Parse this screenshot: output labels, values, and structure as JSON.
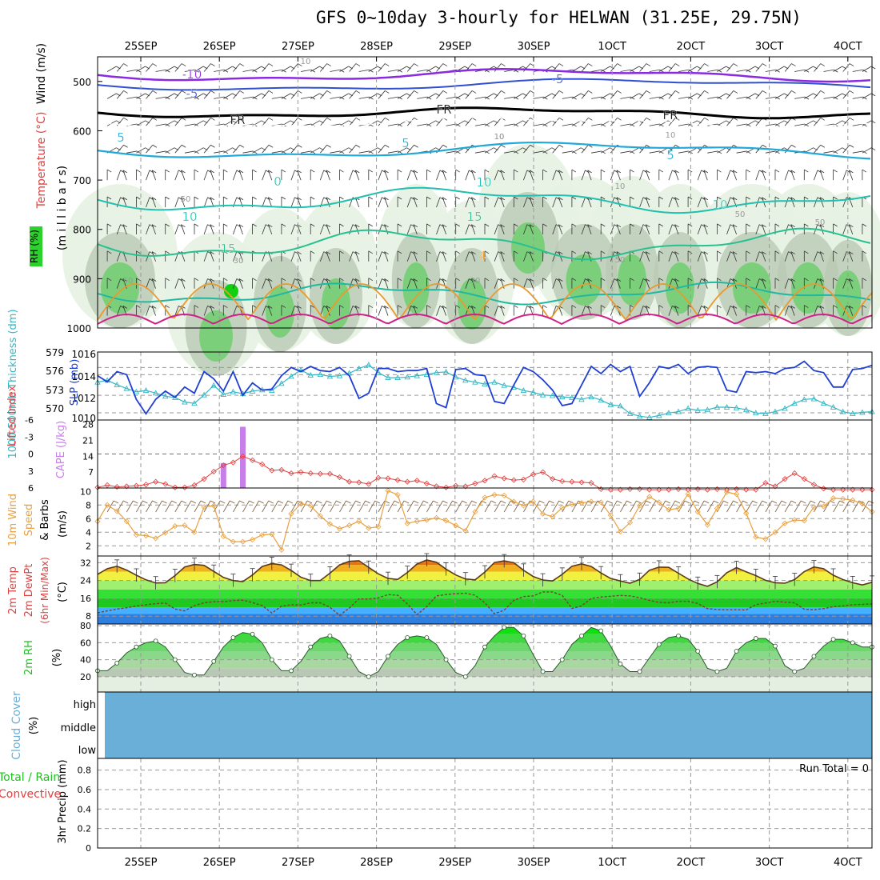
{
  "title": "GFS 0~10day 3-hourly for HELWAN (31.25E, 29.75N)",
  "chart_data": [
    {
      "type": "cross-section",
      "panel": "upper-air",
      "x_dates": [
        "25SEP",
        "26SEP",
        "27SEP",
        "28SEP",
        "29SEP",
        "30SEP",
        "1OCT",
        "2OCT",
        "3OCT",
        "4OCT"
      ],
      "ylabel_parts": {
        "wind": "Wind (m/s)",
        "temp": "Temperature (°C)",
        "pressure": "(m i l l i b a r s)",
        "rh": "RH (%)"
      },
      "y_ticks": [
        500,
        600,
        700,
        800,
        900,
        1000
      ],
      "ylim": [
        450,
        1000
      ],
      "contour_labels": [
        "-10",
        "-5",
        "FR",
        "FR",
        "FR",
        "-5",
        "5",
        "5",
        "5",
        "0",
        "10",
        "10",
        "10",
        "15",
        "15",
        "4"
      ],
      "rh_labels": [
        "30",
        "50",
        "50",
        "10",
        "10",
        "10",
        "30",
        "50",
        "50",
        "10",
        "50",
        "10"
      ]
    },
    {
      "type": "line",
      "panel": "thickness-slp",
      "ylabel_left": "1000-500mb Thickness (dm)",
      "ylabel_right": "SLP (mb)",
      "thickness_ticks": [
        "579",
        "576",
        "573",
        "570"
      ],
      "slp_ticks": [
        "1016",
        "1014",
        "1012",
        "1010"
      ],
      "series": [
        {
          "name": "SLP (mb)",
          "color": "#1f3fd2",
          "values": [
            1013.9,
            1013.3,
            1014.3,
            1014.0,
            1011.6,
            1010.2,
            1011.6,
            1012.4,
            1011.8,
            1012.8,
            1012.2,
            1014.3,
            1013.6,
            1012.4,
            1014.3,
            1012.0,
            1013.2,
            1012.5,
            1012.6,
            1013.9,
            1014.7,
            1014.3,
            1014.8,
            1014.4,
            1014.3,
            1014.7,
            1013.9,
            1011.7,
            1012.2,
            1014.6,
            1014.6,
            1014.3,
            1014.4,
            1014.4,
            1014.6,
            1011.2,
            1010.8,
            1014.5,
            1014.6,
            1014.0,
            1013.9,
            1011.4,
            1011.2,
            1013.0,
            1014.7,
            1014.3,
            1013.5,
            1012.5,
            1011.0,
            1011.2,
            1013.0,
            1014.8,
            1014.1,
            1015.0,
            1014.3,
            1014.8,
            1011.9,
            1013.2,
            1014.8,
            1014.6,
            1015.0,
            1014.1,
            1014.7,
            1014.8,
            1014.7,
            1012.5,
            1012.3,
            1014.3,
            1014.2,
            1014.3,
            1014.1,
            1014.6,
            1014.7,
            1015.3,
            1014.4,
            1014.2,
            1012.8,
            1012.8,
            1014.5,
            1014.6,
            1014.9
          ]
        },
        {
          "name": "1000-500mb Thickness (dm)",
          "color": "#35b6c4",
          "values": [
            574.5,
            574.8,
            574.1,
            573.5,
            573.0,
            573.2,
            572.8,
            572.3,
            572.1,
            571.4,
            571.2,
            572.5,
            574.0,
            572.6,
            573.0,
            572.7,
            573.1,
            573.3,
            573.2,
            574.3,
            575.4,
            576.4,
            575.6,
            575.7,
            575.4,
            575.5,
            575.9,
            576.6,
            577.2,
            576.0,
            575.2,
            575.2,
            575.3,
            575.5,
            575.7,
            576.0,
            576.1,
            575.3,
            574.8,
            574.5,
            574.2,
            574.5,
            574.0,
            573.7,
            573.2,
            572.9,
            572.5,
            572.4,
            572.2,
            572.1,
            571.8,
            572.2,
            571.7,
            571.0,
            570.8,
            569.6,
            569.2,
            569.0,
            569.3,
            569.7,
            569.9,
            570.4,
            570.1,
            570.2,
            570.6,
            570.6,
            570.5,
            570.2,
            569.7,
            569.6,
            569.9,
            570.4,
            571.2,
            571.8,
            571.9,
            571.2,
            570.6,
            569.9,
            569.6,
            569.8,
            569.9
          ]
        }
      ]
    },
    {
      "type": "bar+line",
      "panel": "li-cape",
      "ylabel_left": "Lifted Index",
      "ylabel_right": "CAPE (J/kg)",
      "li_ticks": [
        "-6",
        "-3",
        "0",
        "3",
        "6"
      ],
      "cape_ticks": [
        "28",
        "21",
        "14",
        "7"
      ],
      "li_values": [
        5.9,
        5.5,
        5.8,
        5.7,
        5.6,
        5.4,
        4.9,
        5.3,
        5.9,
        5.9,
        5.5,
        4.4,
        3.1,
        2.0,
        1.5,
        0.4,
        1.1,
        1.8,
        2.9,
        2.8,
        3.4,
        3.2,
        3.4,
        3.5,
        3.5,
        4.1,
        4.9,
        5.0,
        5.3,
        4.2,
        4.3,
        4.6,
        4.9,
        4.7,
        5.2,
        5.7,
        5.9,
        5.6,
        5.7,
        5.2,
        4.7,
        3.9,
        4.3,
        4.6,
        4.5,
        3.6,
        3.2,
        4.4,
        4.8,
        4.9,
        5.0,
        5.1,
        6.2,
        6.3,
        6.3,
        6.2,
        6.2,
        6.3,
        6.3,
        6.3,
        6.2,
        6.3,
        6.2,
        6.3,
        6.2,
        6.3,
        6.2,
        6.3,
        6.3,
        5.1,
        5.7,
        4.4,
        3.4,
        4.4,
        5.4,
        6.1,
        6.3,
        6.3,
        6.3,
        6.3,
        6.3
      ],
      "cape_bars": [
        {
          "index": 13,
          "value": 11
        },
        {
          "index": 15,
          "value": 27
        }
      ]
    },
    {
      "type": "line",
      "panel": "wind10m",
      "ylabel": "10m Wind Speed & Barbs (m/s)",
      "y_ticks": [
        "10",
        "8",
        "6",
        "4",
        "2"
      ],
      "values": [
        5.6,
        8.0,
        7.1,
        5.6,
        3.6,
        3.5,
        3.1,
        3.9,
        4.9,
        5.0,
        4.0,
        7.7,
        7.9,
        3.4,
        2.6,
        2.6,
        2.9,
        3.6,
        3.7,
        1.4,
        6.7,
        8.2,
        7.9,
        6.4,
        5.2,
        4.5,
        5.0,
        5.6,
        4.6,
        4.8,
        10.1,
        9.5,
        5.3,
        5.6,
        5.8,
        6.1,
        5.7,
        5.0,
        4.2,
        7.0,
        9.1,
        9.5,
        9.4,
        8.5,
        7.9,
        8.5,
        6.7,
        6.3,
        7.6,
        8.1,
        8.3,
        8.5,
        8.4,
        6.5,
        4.1,
        5.4,
        7.9,
        9.2,
        8.4,
        7.3,
        7.5,
        9.6,
        7.0,
        5.1,
        7.5,
        9.9,
        9.6,
        6.8,
        3.3,
        3.0,
        4.0,
        5.3,
        5.8,
        5.7,
        7.7,
        7.8,
        9.0,
        8.9,
        8.7,
        8.2,
        7.0
      ]
    },
    {
      "type": "area",
      "panel": "temp-dewpt",
      "ylabel": "2m Temp 2m DewPt (6hr Min/Max) (°C)",
      "y_ticks": [
        "32",
        "24",
        "16",
        "8"
      ],
      "temp_values": [
        26.8,
        29.3,
        30.4,
        28.7,
        26.4,
        24.3,
        22.9,
        23.0,
        26.2,
        30.1,
        31.2,
        30.8,
        28.1,
        25.4,
        24.0,
        23.5,
        26.5,
        30.3,
        31.6,
        31.0,
        28.5,
        25.5,
        24.0,
        24.0,
        27.3,
        31.0,
        32.6,
        32.9,
        29.9,
        27.0,
        24.9,
        24.5,
        27.6,
        31.4,
        33.2,
        32.2,
        29.1,
        26.5,
        24.7,
        24.3,
        27.8,
        32.1,
        32.8,
        32.0,
        28.6,
        25.8,
        24.2,
        23.8,
        26.8,
        30.4,
        31.5,
        30.3,
        27.4,
        24.9,
        23.8,
        22.8,
        24.5,
        28.6,
        30.0,
        29.9,
        27.3,
        24.7,
        22.7,
        21.4,
        23.4,
        27.5,
        29.8,
        27.9,
        26.2,
        24.1,
        23.0,
        22.8,
        24.4,
        28.0,
        30.1,
        29.3,
        26.4,
        24.4,
        23.0,
        22.0,
        23.2
      ],
      "dewpt_values": [
        9.5,
        10.4,
        11.2,
        11.8,
        12.6,
        13.1,
        13.6,
        13.9,
        11.2,
        10.4,
        12.7,
        14.0,
        14.5,
        14.5,
        15.0,
        15.2,
        14.1,
        12.8,
        9.4,
        12.5,
        13.1,
        13.0,
        14.0,
        14.0,
        12.0,
        8.4,
        11.6,
        15.8,
        15.7,
        16.2,
        17.7,
        17.4,
        13.5,
        8.7,
        12.3,
        17.1,
        17.7,
        18.1,
        18.3,
        17.4,
        14.0,
        9.1,
        10.7,
        15.1,
        16.8,
        17.1,
        18.9,
        18.9,
        17.3,
        11.5,
        12.6,
        16.0,
        16.6,
        16.9,
        17.3,
        17.1,
        16.3,
        15.1,
        14.2,
        14.0,
        14.7,
        14.7,
        13.7,
        11.4,
        11.0,
        10.9,
        10.9,
        10.8,
        13.2,
        13.9,
        14.7,
        14.3,
        14.0,
        11.1,
        10.9,
        11.4,
        12.3,
        12.6,
        13.1,
        13.3,
        13.5
      ]
    },
    {
      "type": "area",
      "panel": "rh2m",
      "ylabel": "2m RH (%)",
      "y_ticks": [
        "80",
        "60",
        "40",
        "20"
      ],
      "values": [
        27,
        27,
        36,
        48,
        55,
        60,
        62,
        55,
        40,
        25,
        22,
        22,
        38,
        55,
        66,
        72,
        70,
        60,
        40,
        27,
        27,
        38,
        55,
        65,
        68,
        62,
        44,
        26,
        20,
        26,
        44,
        58,
        66,
        68,
        66,
        58,
        40,
        25,
        20,
        33,
        55,
        68,
        78,
        78,
        68,
        46,
        26,
        26,
        40,
        58,
        68,
        78,
        74,
        56,
        35,
        26,
        26,
        42,
        58,
        66,
        68,
        64,
        50,
        30,
        26,
        30,
        50,
        60,
        65,
        65,
        56,
        33,
        26,
        30,
        44,
        56,
        64,
        64,
        60,
        55,
        55
      ]
    },
    {
      "type": "heatmap",
      "panel": "cloud",
      "ylabel": "Cloud Cover (%)",
      "levels": [
        "high",
        "middle",
        "low"
      ]
    },
    {
      "type": "bar",
      "panel": "precip",
      "ylabel": "3hr Precip (mm)",
      "ylabel_left": "Total / Rain",
      "ylabel_left2": "Convective",
      "y_ticks": [
        "0.8",
        "0.6",
        "0.4",
        "0.2",
        "0"
      ],
      "run_total": "Run Total = 0",
      "values": []
    }
  ],
  "colors": {
    "slp": "#1f3fd2",
    "thickness": "#35b6c4",
    "li": "#e04040",
    "cape": "#c77ee8",
    "wind": "#e8a040",
    "rh": "#21c021",
    "cloud": "#6aafd8"
  }
}
